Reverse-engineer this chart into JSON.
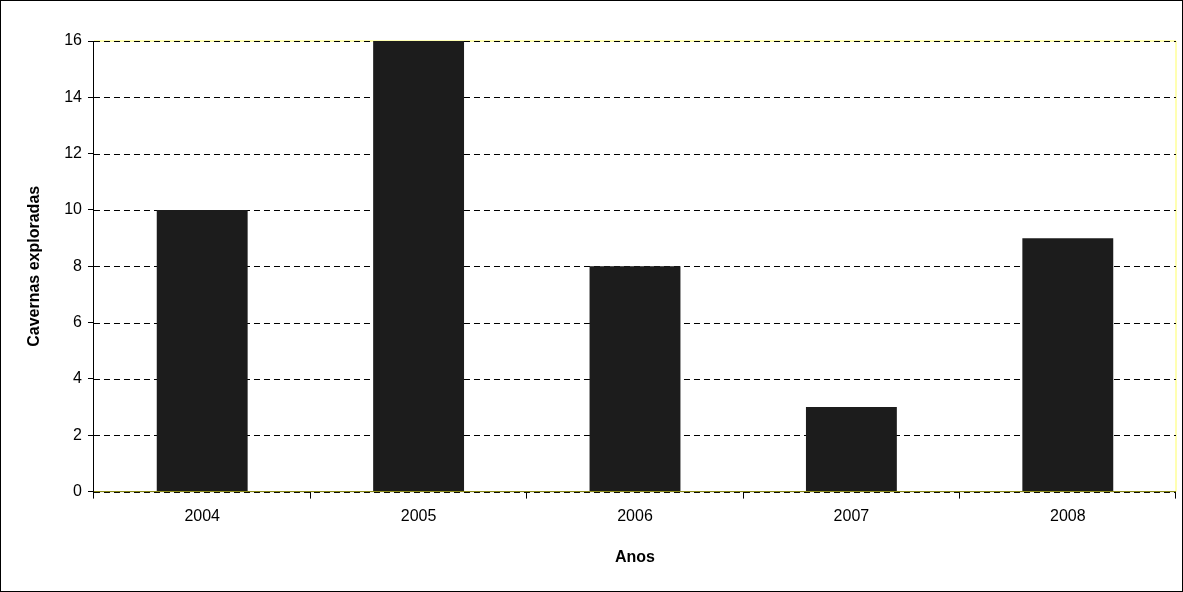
{
  "chart_data": {
    "type": "bar",
    "xlabel": "Anos",
    "ylabel": "Cavernas exploradas",
    "categories": [
      "2004",
      "2005",
      "2006",
      "2007",
      "2008"
    ],
    "values": [
      10,
      16,
      8,
      3,
      9
    ],
    "color": "#1c1c1c",
    "ylim": [
      0,
      16
    ],
    "yticks": [
      0,
      2,
      4,
      6,
      8,
      10,
      12,
      14,
      16
    ],
    "grid": "y",
    "legend": false
  }
}
